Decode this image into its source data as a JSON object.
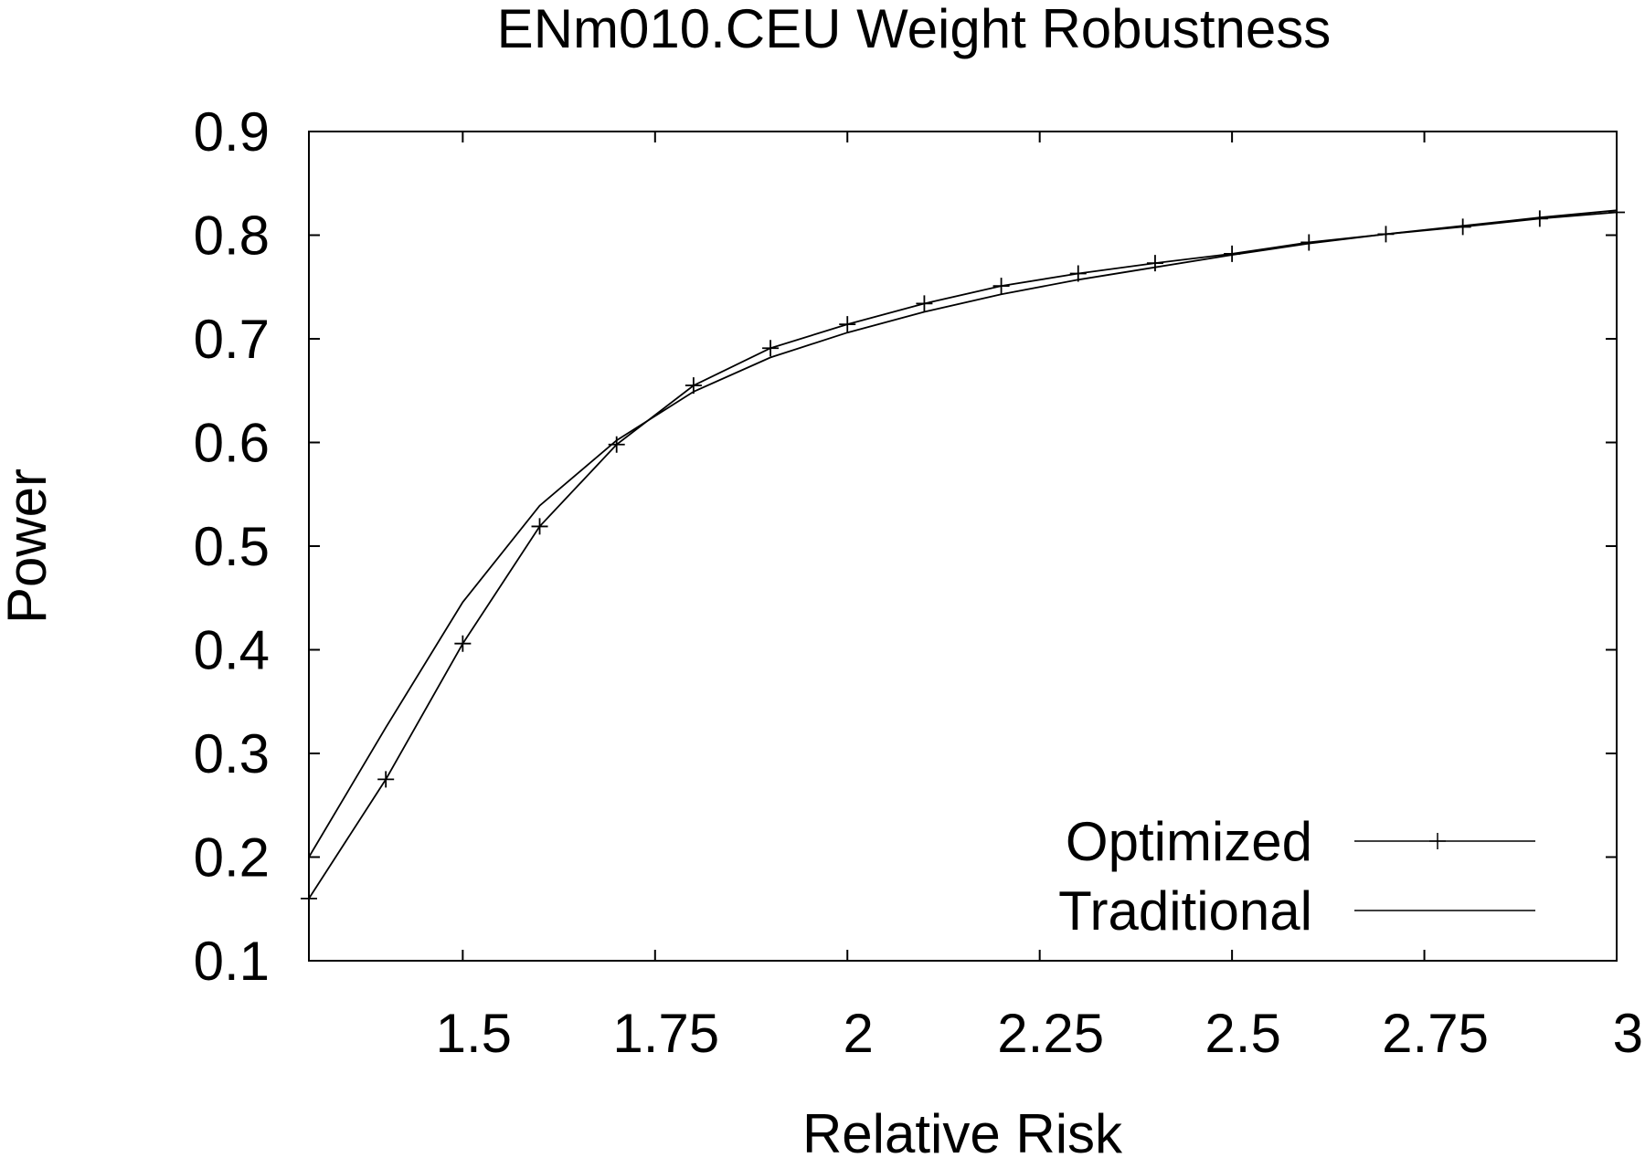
{
  "chart_data": {
    "type": "line",
    "title": "ENm010.CEU Weight Robustness",
    "xlabel": "Relative Risk",
    "ylabel": "Power",
    "xlim": [
      1.3,
      3.0
    ],
    "ylim": [
      0.1,
      0.9
    ],
    "xticks": [
      1.5,
      1.75,
      2,
      2.25,
      2.5,
      2.75,
      3
    ],
    "xtick_labels": [
      "1.5",
      "1.75",
      "2",
      "2.25",
      "2.5",
      "2.75",
      "3"
    ],
    "yticks": [
      0.1,
      0.2,
      0.3,
      0.4,
      0.5,
      0.6,
      0.7,
      0.8,
      0.9
    ],
    "ytick_labels": [
      "0.1",
      "0.2",
      "0.3",
      "0.4",
      "0.5",
      "0.6",
      "0.7",
      "0.8",
      "0.9"
    ],
    "grid": false,
    "legend_position": "bottom-right",
    "x": [
      1.3,
      1.4,
      1.5,
      1.6,
      1.7,
      1.8,
      1.9,
      2.0,
      2.1,
      2.2,
      2.3,
      2.4,
      2.5,
      2.6,
      2.7,
      2.8,
      2.9,
      3.0
    ],
    "series": [
      {
        "name": "Optimized",
        "marker": "plus",
        "color": "#000000",
        "values": [
          0.16,
          0.275,
          0.406,
          0.519,
          0.598,
          0.655,
          0.691,
          0.714,
          0.734,
          0.751,
          0.763,
          0.773,
          0.782,
          0.793,
          0.801,
          0.808,
          0.816,
          0.822
        ]
      },
      {
        "name": "Traditional",
        "marker": "none",
        "color": "#000000",
        "values": [
          0.2,
          0.325,
          0.446,
          0.539,
          0.602,
          0.649,
          0.682,
          0.706,
          0.726,
          0.743,
          0.757,
          0.769,
          0.781,
          0.792,
          0.801,
          0.809,
          0.817,
          0.824
        ]
      }
    ]
  }
}
